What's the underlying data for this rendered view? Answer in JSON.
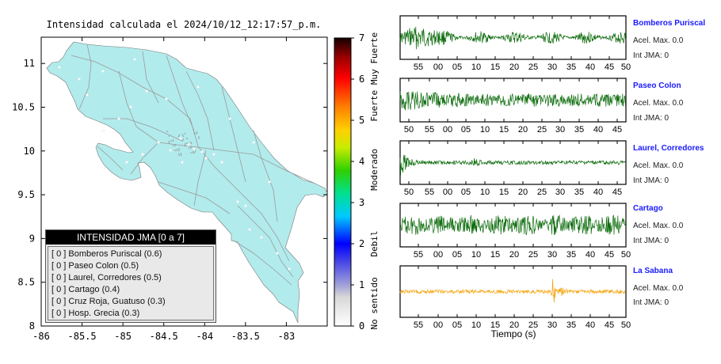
{
  "map": {
    "title": "Intensidad calculada el 2024/10/12_12:17:57_p.m.",
    "x_ticks": [
      "-86",
      "-85.5",
      "-85",
      "-84.5",
      "-84",
      "-83.5",
      "-83"
    ],
    "y_ticks": [
      "11",
      "10.5",
      "10",
      "9.5",
      "9",
      "8.5",
      "8"
    ],
    "land_color": "#b2ebec",
    "road_color": "#9a9a9a"
  },
  "colorbar": {
    "ticks": [
      "0",
      "1",
      "2",
      "3",
      "4",
      "5",
      "6",
      "7"
    ],
    "labels": [
      "No sentido",
      "Debil",
      "Moderado",
      "Fuerte",
      "Muy Fuerte"
    ]
  },
  "legend": {
    "title": "INTENSIDAD JMA [0 a 7]",
    "items": [
      "[ 0 ]  Bomberos Puriscal (0.6)",
      "[ 0 ]  Paseo Colon (0.5)",
      "[ 0 ]  Laurel, Corredores (0.5)",
      "[ 0 ]  Cartago (0.4)",
      "[ 0 ]  Cruz Roja, Guatuso (0.3)",
      "[ 0 ]  Hosp. Grecia (0.3)"
    ]
  },
  "waveforms": {
    "xlabel": "Tiempo (s)",
    "stations": [
      {
        "name": "Bomberos Puriscal",
        "acel": "Acel. Max. 0.0",
        "int": "Int JMA: 0",
        "color": "#0b6b0b",
        "ticks": [
          "55",
          "00",
          "05",
          "10",
          "15",
          "20",
          "25",
          "30",
          "35",
          "40",
          "45",
          "50"
        ]
      },
      {
        "name": "Paseo Colon",
        "acel": "Acel. Max. 0.0",
        "int": "Int JMA: 0",
        "color": "#0b6b0b",
        "ticks": [
          "50",
          "55",
          "00",
          "05",
          "10",
          "15",
          "20",
          "25",
          "30",
          "35",
          "40",
          "45"
        ]
      },
      {
        "name": "Laurel, Corredores",
        "acel": "Acel. Max. 0.0",
        "int": "Int JMA: 0",
        "color": "#0b6b0b",
        "ticks": [
          "50",
          "55",
          "00",
          "05",
          "10",
          "15",
          "20",
          "25",
          "30",
          "35",
          "40",
          "45"
        ]
      },
      {
        "name": "Cartago",
        "acel": "Acel. Max. 0.0",
        "int": "Int JMA: 0",
        "color": "#0b6b0b",
        "ticks": [
          "55",
          "00",
          "05",
          "10",
          "15",
          "20",
          "25",
          "30",
          "35",
          "40",
          "45",
          "50"
        ]
      },
      {
        "name": "La Sabana",
        "acel": "Acel. Max. 0.0",
        "int": "Int JMA: 0",
        "color": "#f5a000",
        "ticks": [
          "55",
          "00",
          "05",
          "10",
          "15",
          "20",
          "25",
          "30",
          "35",
          "40",
          "45",
          "50"
        ]
      }
    ]
  },
  "chart_data": [
    {
      "type": "scatter",
      "title": "Intensidad calculada el 2024/10/12_12:17:57_p.m.",
      "xlabel": "",
      "ylabel": "",
      "xlim": [
        -86,
        -82.5
      ],
      "ylim": [
        8,
        11.3
      ],
      "colorbar": {
        "range": [
          0,
          7
        ],
        "labels": [
          "No sentido",
          "Debil",
          "Moderado",
          "Fuerte",
          "Muy Fuerte"
        ]
      },
      "legend": "bottom-left"
    },
    {
      "type": "line",
      "xlabel": "Tiempo (s)",
      "series": [
        {
          "name": "Bomberos Puriscal",
          "peak_acel": 0.0,
          "int_jma": 0
        },
        {
          "name": "Paseo Colon",
          "peak_acel": 0.0,
          "int_jma": 0
        },
        {
          "name": "Laurel, Corredores",
          "peak_acel": 0.0,
          "int_jma": 0
        },
        {
          "name": "Cartago",
          "peak_acel": 0.0,
          "int_jma": 0
        },
        {
          "name": "La Sabana",
          "peak_acel": 0.0,
          "int_jma": 0
        }
      ]
    }
  ]
}
